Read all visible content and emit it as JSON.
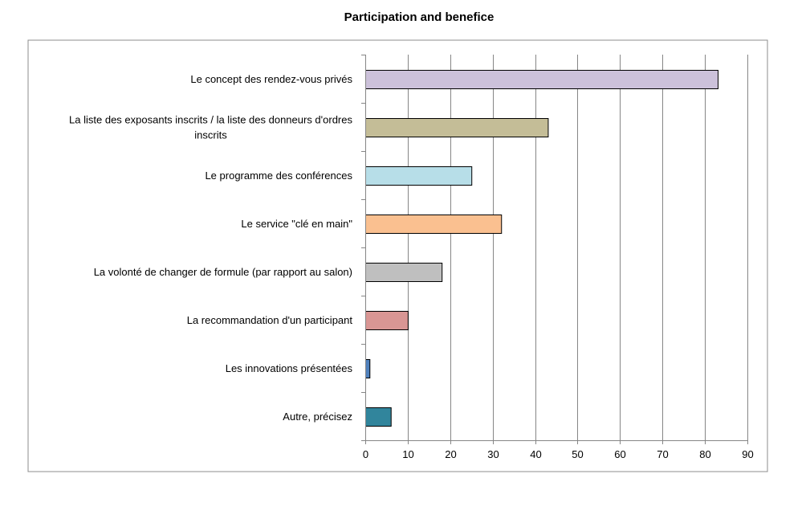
{
  "chart_data": {
    "type": "bar",
    "orientation": "horizontal",
    "title": "Participation and benefice",
    "categories": [
      [
        "Le concept des rendez-vous privés"
      ],
      [
        "La liste des exposants inscrits / la liste des donneurs d'ordres",
        "inscrits"
      ],
      [
        "Le programme des conférences"
      ],
      [
        "Le service \"clé en main\""
      ],
      [
        "La volonté de changer de formule (par rapport au salon)"
      ],
      [
        "La recommandation d'un participant"
      ],
      [
        "Les innovations présentées"
      ],
      [
        "Autre, précisez"
      ]
    ],
    "values": [
      83,
      43,
      25,
      32,
      18,
      10,
      1,
      6
    ],
    "colors": [
      "#ccc1da",
      "#c4bd97",
      "#b7dee8",
      "#fac090",
      "#bfbfbf",
      "#d99694",
      "#4f81bd",
      "#31859c"
    ],
    "xlim": [
      0,
      90
    ],
    "xticks": [
      "0",
      "10",
      "20",
      "30",
      "40",
      "50",
      "60",
      "70",
      "80",
      "90"
    ],
    "grid": true,
    "legend": "none"
  }
}
